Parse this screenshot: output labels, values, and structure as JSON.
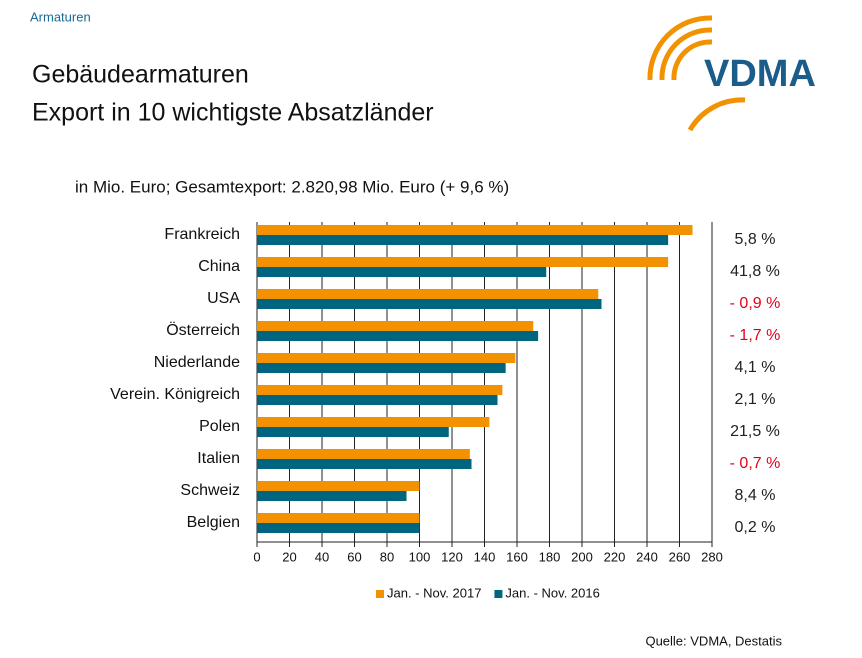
{
  "section": "Armaturen",
  "logo": "VDMA",
  "source": "Quelle: VDMA, Destatis",
  "chart_data": {
    "type": "hbar",
    "title": [
      "Gebäudearmaturen",
      "Export in 10 wichtigste Absatzländer"
    ],
    "subtitle": "in Mio. Euro; Gesamtexport: 2.820,98 Mio. Euro (+ 9,6 %)",
    "categories": [
      "Frankreich",
      "China",
      "USA",
      "Österreich",
      "Niederlande",
      "Verein. Königreich",
      "Polen",
      "Italien",
      "Schweiz",
      "Belgien"
    ],
    "series": [
      {
        "name": "Jan. - Nov. 2017",
        "color": "#f39200",
        "values": [
          268,
          253,
          210,
          170,
          159,
          151,
          143,
          131,
          100,
          100
        ]
      },
      {
        "name": "Jan. - Nov. 2016",
        "color": "#00657e",
        "values": [
          253,
          178,
          212,
          173,
          153,
          148,
          118,
          132,
          92,
          100
        ]
      }
    ],
    "change_labels": [
      "5,8 %",
      "41,8 %",
      "- 0,9 %",
      "- 1,7 %",
      "4,1 %",
      "2,1 %",
      "21,5 %",
      "- 0,7 %",
      "8,4 %",
      "0,2 %"
    ],
    "change_colors": [
      "#222222",
      "#222222",
      "#e2001a",
      "#e2001a",
      "#222222",
      "#222222",
      "#222222",
      "#e2001a",
      "#222222",
      "#222222"
    ],
    "xlim": [
      0,
      280
    ],
    "xticks": [
      0,
      20,
      40,
      60,
      80,
      100,
      120,
      140,
      160,
      180,
      200,
      220,
      240,
      260,
      280
    ],
    "grid": true,
    "legend": "bottom"
  }
}
